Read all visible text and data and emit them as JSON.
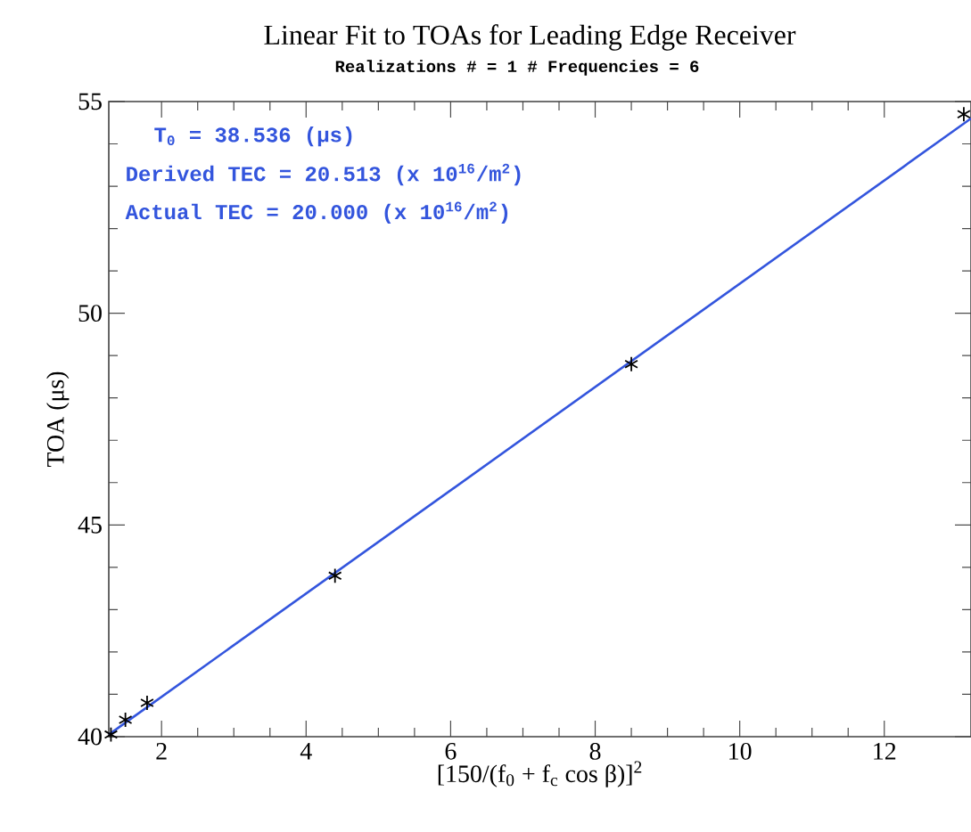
{
  "chart_data": {
    "type": "scatter",
    "title": "Linear Fit to TOAs for Leading Edge Receiver",
    "subtitle": "Realizations # =   1 # Frequencies =   6",
    "xlabel": "[150/(f$_{0}$ + f$_{c}$ cos β)]$^{2}$",
    "ylabel": "TOA (μs)",
    "annotations": [
      "T$_{0}$ =  38.536 (μs)",
      "Derived TEC =  20.513 (x 10$^{16}$/m$^{2}$)",
      "Actual TEC =  20.000 (x 10$^{16}$/m$^{2}$)"
    ],
    "series": [
      {
        "color": "#000000",
        "marker": "cross",
        "x": [
          1.3,
          1.5,
          1.8,
          4.4,
          8.5,
          13.1
        ],
        "values": [
          40.05,
          40.4,
          40.8,
          43.8,
          48.8,
          54.7
        ]
      },
      {
        "type": "line",
        "color": "#3355dd",
        "marker": "none",
        "x": [
          1.27,
          13.2
        ],
        "values": [
          40.05,
          54.6
        ]
      }
    ],
    "xlim": [
      1.27,
      13.2
    ],
    "ylim": [
      40,
      55
    ],
    "xticks": [
      2,
      4,
      6,
      8,
      10,
      12
    ],
    "yticks": [
      40,
      45,
      50,
      55
    ],
    "grid": false
  }
}
